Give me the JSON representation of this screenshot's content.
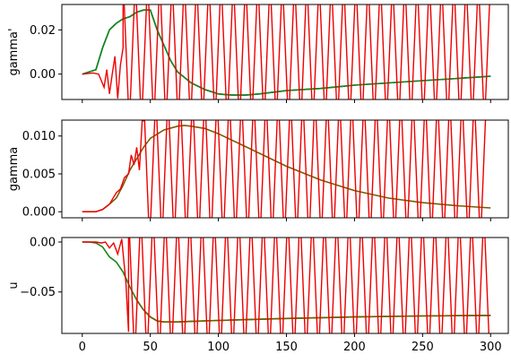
{
  "colors": {
    "blue": "#1f3bd6",
    "green": "#118a11",
    "red": "#ee0000",
    "olive": "#7a5a00",
    "axis": "#000000"
  },
  "chart_data": [
    {
      "type": "line",
      "ylabel": "gamma'",
      "xlim": [
        -15,
        313
      ],
      "ylim": [
        -0.0115,
        0.0315
      ],
      "yticks": [
        0.0,
        0.02
      ],
      "ytick_labels": [
        "0.00",
        "0.02"
      ],
      "xticks": [
        0,
        50,
        100,
        150,
        200,
        250,
        300
      ],
      "xtick_labels": [],
      "series": [
        {
          "key": "blue",
          "color": "#1f3bd6",
          "x": [
            0,
            5,
            10,
            15,
            20,
            25,
            30,
            35,
            40,
            45,
            50,
            55,
            60,
            65,
            70,
            80,
            90,
            100,
            110,
            120,
            130,
            150,
            175,
            200,
            225,
            250,
            275,
            300
          ],
          "y": [
            0.0,
            0.001,
            0.002,
            0.012,
            0.02,
            0.023,
            0.025,
            0.026,
            0.028,
            0.029,
            0.029,
            0.02,
            0.013,
            0.006,
            0.001,
            -0.004,
            -0.007,
            -0.009,
            -0.0095,
            -0.0095,
            -0.009,
            -0.0075,
            -0.0065,
            -0.005,
            -0.004,
            -0.003,
            -0.002,
            -0.001
          ]
        },
        {
          "key": "green",
          "color": "#118a11",
          "x": [
            0,
            5,
            10,
            15,
            20,
            25,
            30,
            35,
            40,
            45,
            50,
            55,
            60,
            65,
            70,
            80,
            90,
            100,
            110,
            120,
            130,
            150,
            175,
            200,
            225,
            250,
            275,
            300
          ],
          "y": [
            0.0,
            0.001,
            0.002,
            0.012,
            0.02,
            0.023,
            0.025,
            0.026,
            0.028,
            0.029,
            0.029,
            0.02,
            0.013,
            0.006,
            0.001,
            -0.004,
            -0.007,
            -0.009,
            -0.0095,
            -0.0095,
            -0.009,
            -0.0075,
            -0.0065,
            -0.005,
            -0.004,
            -0.003,
            -0.002,
            -0.001
          ]
        },
        {
          "key": "red",
          "color": "#ee0000",
          "oscillating": true,
          "osc_start": 30,
          "osc_period": 4.5,
          "x": [
            0,
            8,
            12,
            16,
            18,
            20,
            22,
            24,
            26,
            28,
            30
          ],
          "y": [
            0.0,
            0.0005,
            0.0,
            -0.006,
            0.002,
            -0.009,
            0.0,
            0.008,
            -0.011,
            0.004,
            0.012
          ]
        }
      ]
    },
    {
      "type": "line",
      "ylabel": "gamma",
      "xlim": [
        -15,
        313
      ],
      "ylim": [
        -0.0008,
        0.0121
      ],
      "yticks": [
        0.0,
        0.005,
        0.01
      ],
      "ytick_labels": [
        "0.000",
        "0.005",
        "0.010"
      ],
      "xticks": [
        0,
        50,
        100,
        150,
        200,
        250,
        300
      ],
      "xtick_labels": [],
      "series": [
        {
          "key": "olive",
          "color": "#7a5a00",
          "x": [
            0,
            10,
            15,
            20,
            25,
            30,
            35,
            40,
            45,
            50,
            60,
            70,
            75,
            80,
            90,
            100,
            120,
            150,
            175,
            200,
            225,
            250,
            275,
            300
          ],
          "y": [
            0.0,
            0.0,
            0.0003,
            0.001,
            0.0018,
            0.0035,
            0.0055,
            0.007,
            0.0085,
            0.0097,
            0.0108,
            0.0113,
            0.0114,
            0.0113,
            0.011,
            0.0103,
            0.0086,
            0.006,
            0.0042,
            0.0028,
            0.0018,
            0.0012,
            0.0008,
            0.0005
          ]
        },
        {
          "key": "red",
          "color": "#ee0000",
          "oscillating": true,
          "osc_start": 45,
          "osc_period": 4.5,
          "x": [
            0,
            10,
            15,
            20,
            25,
            28,
            31,
            34,
            36,
            38,
            40,
            42,
            44,
            45
          ],
          "y": [
            0.0,
            0.0,
            0.0003,
            0.001,
            0.0025,
            0.003,
            0.0045,
            0.005,
            0.0075,
            0.0062,
            0.0085,
            0.0055,
            0.012,
            0.012
          ]
        }
      ]
    },
    {
      "type": "line",
      "ylabel": "u",
      "xlabel": "",
      "xlim": [
        -15,
        313
      ],
      "ylim": [
        -0.0915,
        0.0045
      ],
      "yticks": [
        0.0,
        -0.05
      ],
      "ytick_labels": [
        "0.00",
        "−0.05"
      ],
      "xticks": [
        0,
        50,
        100,
        150,
        200,
        250,
        300
      ],
      "xtick_labels": [
        "0",
        "50",
        "100",
        "150",
        "200",
        "250",
        "300"
      ],
      "series": [
        {
          "key": "green",
          "color": "#118a11",
          "x": [
            0,
            5,
            10,
            15,
            20,
            25,
            30,
            35,
            40,
            45,
            50,
            55,
            60,
            70,
            80,
            100,
            150,
            200,
            250,
            300
          ],
          "y": [
            0.0,
            0.0,
            -0.001,
            -0.005,
            -0.015,
            -0.02,
            -0.03,
            -0.045,
            -0.058,
            -0.068,
            -0.075,
            -0.079,
            -0.08,
            -0.08,
            -0.0795,
            -0.0785,
            -0.0765,
            -0.075,
            -0.074,
            -0.0735
          ]
        },
        {
          "key": "olive",
          "color": "#7a5a00",
          "x": [
            40,
            45,
            50,
            55,
            60,
            70,
            80,
            100,
            150,
            200,
            250,
            300
          ],
          "y": [
            -0.058,
            -0.068,
            -0.075,
            -0.079,
            -0.08,
            -0.08,
            -0.0795,
            -0.0785,
            -0.0765,
            -0.075,
            -0.074,
            -0.0735
          ]
        },
        {
          "key": "red",
          "color": "#ee0000",
          "oscillating": true,
          "osc_start": 34,
          "osc_period": 4.5,
          "x": [
            0,
            10,
            14,
            17,
            20,
            23,
            26,
            29,
            32,
            34
          ],
          "y": [
            0.0,
            0.0,
            -0.001,
            0.0,
            -0.006,
            -0.001,
            -0.012,
            0.003,
            -0.04,
            -0.09
          ]
        }
      ]
    }
  ]
}
